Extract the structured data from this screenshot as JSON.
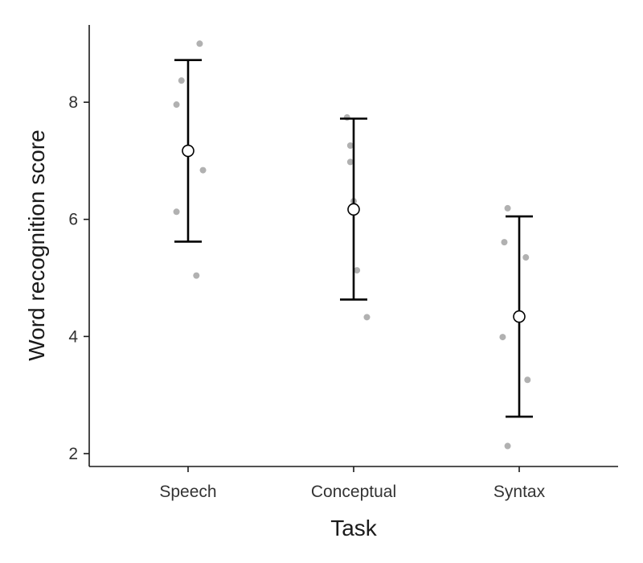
{
  "chart_data": {
    "type": "scatter",
    "title": "",
    "xlabel": "Task",
    "ylabel": "Word recognition score",
    "categories": [
      "Speech",
      "Conceptual",
      "Syntax"
    ],
    "yticks": [
      2,
      4,
      6,
      8
    ],
    "ylim": [
      1.78,
      9.32
    ],
    "grid": false,
    "legend": "none",
    "raw_points": [
      {
        "category": "Speech",
        "jitter": 0.07,
        "y": 9.0
      },
      {
        "category": "Speech",
        "jitter": -0.04,
        "y": 8.37
      },
      {
        "category": "Speech",
        "jitter": -0.07,
        "y": 7.96
      },
      {
        "category": "Speech",
        "jitter": 0.09,
        "y": 6.84
      },
      {
        "category": "Speech",
        "jitter": -0.07,
        "y": 6.13
      },
      {
        "category": "Speech",
        "jitter": 0.05,
        "y": 5.04
      },
      {
        "category": "Conceptual",
        "jitter": -0.04,
        "y": 7.74
      },
      {
        "category": "Conceptual",
        "jitter": -0.02,
        "y": 7.26
      },
      {
        "category": "Conceptual",
        "jitter": -0.02,
        "y": 6.98
      },
      {
        "category": "Conceptual",
        "jitter": 0.0,
        "y": 6.31
      },
      {
        "category": "Conceptual",
        "jitter": 0.02,
        "y": 5.13
      },
      {
        "category": "Conceptual",
        "jitter": 0.08,
        "y": 4.33
      },
      {
        "category": "Syntax",
        "jitter": -0.07,
        "y": 6.19
      },
      {
        "category": "Syntax",
        "jitter": -0.09,
        "y": 5.61
      },
      {
        "category": "Syntax",
        "jitter": 0.04,
        "y": 5.35
      },
      {
        "category": "Syntax",
        "jitter": -0.1,
        "y": 3.99
      },
      {
        "category": "Syntax",
        "jitter": 0.05,
        "y": 3.26
      },
      {
        "category": "Syntax",
        "jitter": -0.07,
        "y": 2.13
      }
    ],
    "summary": [
      {
        "category": "Speech",
        "mean": 7.17,
        "lower": 5.62,
        "upper": 8.72
      },
      {
        "category": "Conceptual",
        "mean": 6.17,
        "lower": 4.63,
        "upper": 7.72
      },
      {
        "category": "Syntax",
        "mean": 4.34,
        "lower": 2.63,
        "upper": 6.05
      }
    ],
    "colors": {
      "raw_point": "#9e9e9e",
      "summary": "#000000",
      "mean_fill": "#ffffff"
    }
  }
}
